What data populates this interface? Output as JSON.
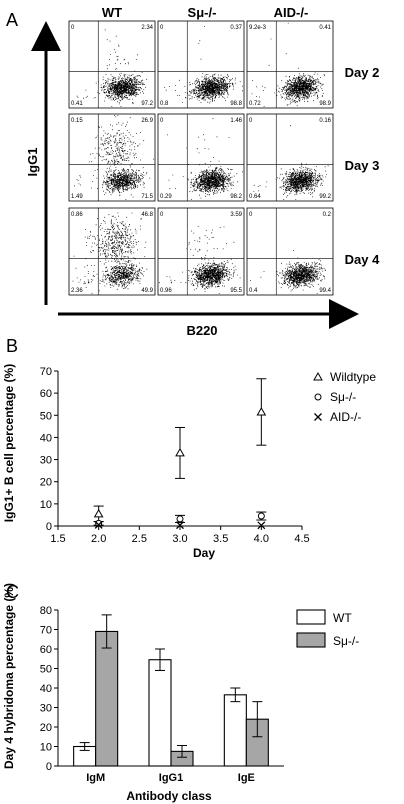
{
  "panelA": {
    "label": "A",
    "col_headers": [
      "WT",
      "Sμ-/-",
      "AID-/-"
    ],
    "row_labels": [
      "Day 2",
      "Day 3",
      "Day 4"
    ],
    "y_axis_label": "IgG1",
    "x_axis_label": "B220",
    "quadrants": [
      [
        [
          "0",
          "2.34",
          "0.41",
          "97.2"
        ],
        [
          "0",
          "0.37",
          "0.8",
          "98.8"
        ],
        [
          "9.2e-3",
          "0.41",
          "0.72",
          "98.9"
        ]
      ],
      [
        [
          "0.15",
          "26.9",
          "1.49",
          "71.5"
        ],
        [
          "0",
          "1.46",
          "0.29",
          "98.2"
        ],
        [
          "0",
          "0.16",
          "0.64",
          "99.2"
        ]
      ],
      [
        [
          "0.86",
          "46.8",
          "2.36",
          "49.9"
        ],
        [
          "0",
          "3.59",
          "0.96",
          "95.5"
        ],
        [
          "0",
          "0.2",
          "0.4",
          "99.4"
        ]
      ]
    ],
    "dot_fractions": [
      [
        [
          0.0,
          0.0234,
          0.0041,
          0.972
        ],
        [
          0.0,
          0.0037,
          0.008,
          0.988
        ],
        [
          0.0001,
          0.0041,
          0.0072,
          0.989
        ]
      ],
      [
        [
          0.0015,
          0.269,
          0.0149,
          0.715
        ],
        [
          0.0,
          0.0146,
          0.0029,
          0.982
        ],
        [
          0.0,
          0.0016,
          0.0064,
          0.992
        ]
      ],
      [
        [
          0.0086,
          0.468,
          0.0236,
          0.499
        ],
        [
          0.0,
          0.0359,
          0.0096,
          0.955
        ],
        [
          0.0,
          0.002,
          0.004,
          0.994
        ]
      ]
    ]
  },
  "panelB": {
    "label": "B"
  },
  "panelC": {
    "label": "C"
  },
  "chart_data": [
    {
      "type": "scatter",
      "xlabel": "Day",
      "ylabel": "IgG1+ B cell percentage (%)",
      "xlim": [
        1.5,
        4.5
      ],
      "ylim": [
        0,
        70
      ],
      "xticks": [
        "1.5",
        "2.0",
        "2.5",
        "3.0",
        "3.5",
        "4.0",
        "4.5"
      ],
      "yticks": [
        "0",
        "10",
        "20",
        "30",
        "40",
        "50",
        "60",
        "70"
      ],
      "legend_position": "top-right",
      "series": [
        {
          "name": "Wildtype",
          "marker": "triangle",
          "x": [
            2,
            3,
            4
          ],
          "y": [
            5.5,
            33,
            51.5
          ],
          "err": [
            3.5,
            11.5,
            15
          ]
        },
        {
          "name": "Sμ-/-",
          "marker": "circle",
          "x": [
            2,
            3,
            4
          ],
          "y": [
            1.2,
            3.2,
            4.5
          ],
          "err": [
            0.8,
            1.6,
            1.8
          ]
        },
        {
          "name": "AID-/-",
          "marker": "x",
          "x": [
            2,
            3,
            4
          ],
          "y": [
            0.5,
            0.4,
            0.3
          ],
          "err": [
            0,
            0,
            0
          ]
        }
      ]
    },
    {
      "type": "bar",
      "xlabel": "Antibody class",
      "ylabel": "Day 4 hybridoma percentage (%)",
      "categories": [
        "IgM",
        "IgG1",
        "IgE"
      ],
      "ylim": [
        0,
        80
      ],
      "yticks": [
        "0",
        "10",
        "20",
        "30",
        "40",
        "50",
        "60",
        "70",
        "80"
      ],
      "legend_position": "top-right",
      "series": [
        {
          "name": "WT",
          "color": "#ffffff",
          "values": [
            10,
            54.5,
            36.5
          ],
          "err": [
            2,
            5.5,
            3.5
          ]
        },
        {
          "name": "Sμ-/-",
          "color": "#a6a6a6",
          "values": [
            69,
            7.5,
            24
          ],
          "err": [
            8.5,
            3,
            9
          ]
        }
      ]
    }
  ]
}
